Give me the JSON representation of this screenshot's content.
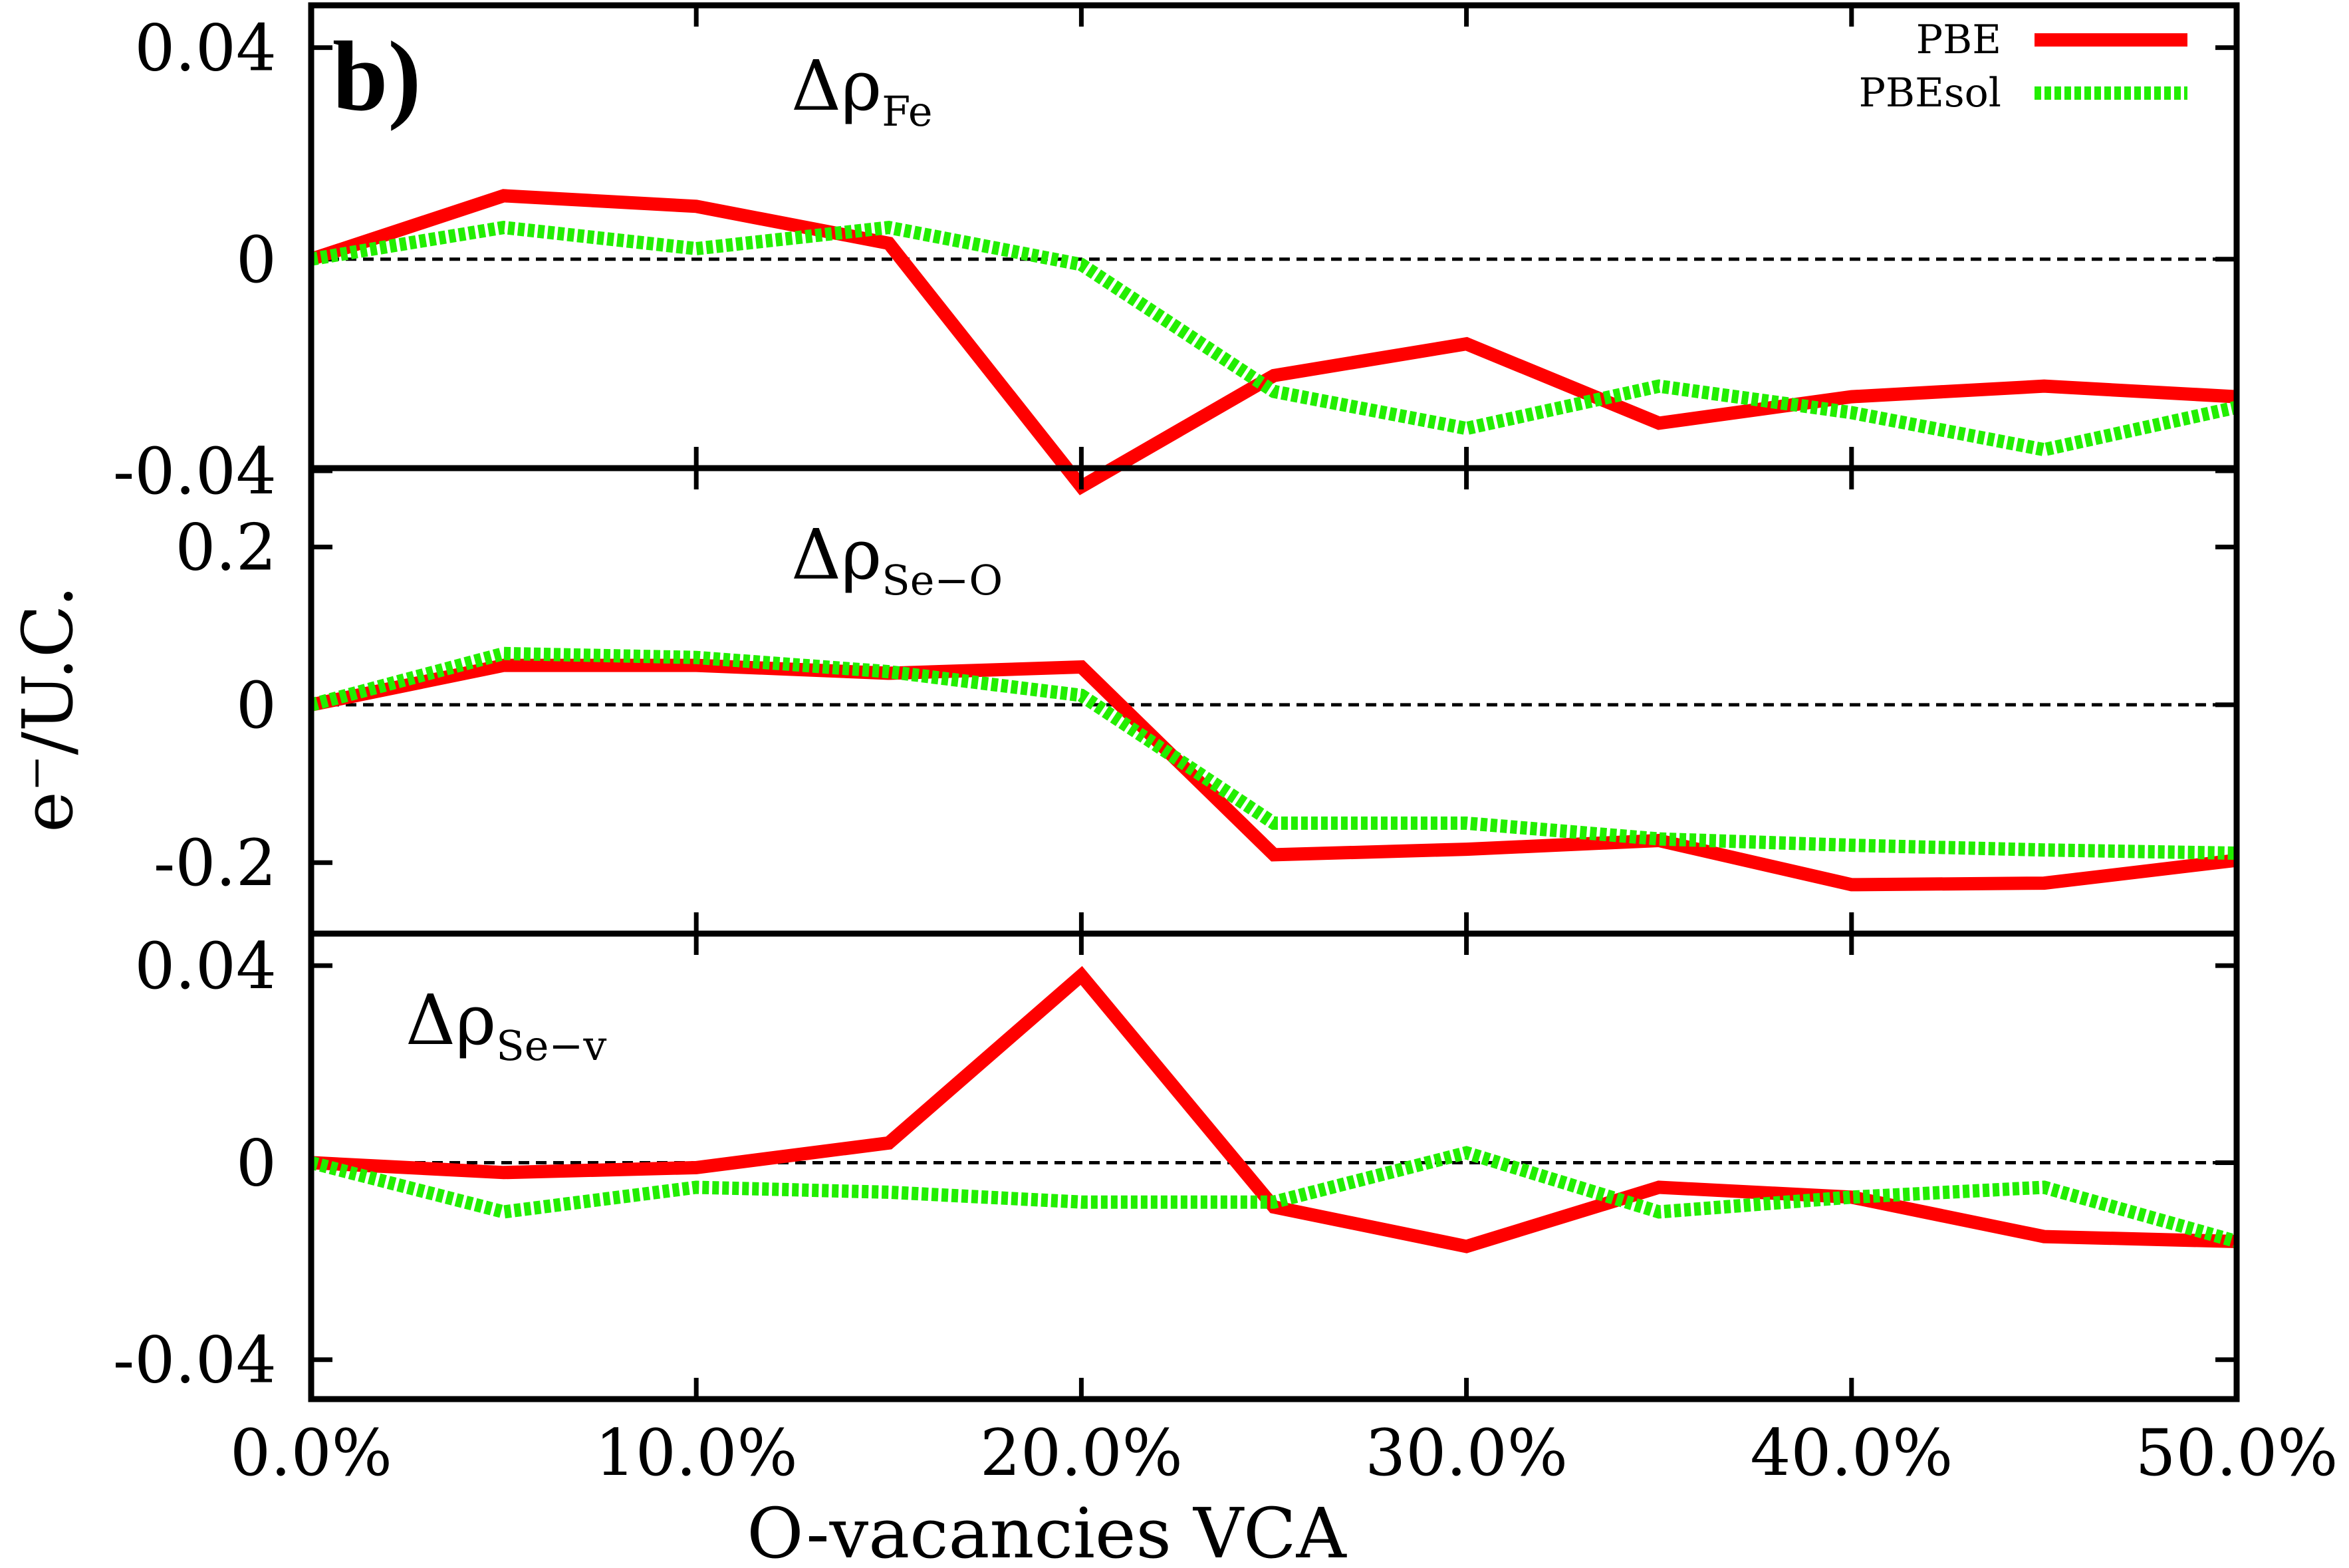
{
  "chart_data": {
    "type": "line",
    "panel_label": "b)",
    "xlabel": "O-vacancies VCA",
    "ylabel": "e⁻/U.C.",
    "x": [
      0,
      5,
      10,
      15,
      20,
      25,
      30,
      35,
      40,
      45,
      50
    ],
    "xlim": [
      0,
      50
    ],
    "xticks": [
      0,
      10,
      20,
      30,
      40,
      50
    ],
    "xtick_labels": [
      "0.0%",
      "10.0%",
      "20.0%",
      "30.0%",
      "40.0%",
      "50.0%"
    ],
    "legend": [
      {
        "name": "PBE",
        "color": "#ff0000",
        "style": "solid"
      },
      {
        "name": "PBEsol",
        "color": "#22ee00",
        "style": "dotted"
      }
    ],
    "reference_line": {
      "y": 0,
      "style": "dashed",
      "color": "#000000"
    },
    "panels": [
      {
        "annotation": {
          "symbol": "Δρ",
          "sub": "Fe"
        },
        "ylim": [
          -0.0395,
          0.048
        ],
        "yticks": [
          0.04,
          0,
          -0.04
        ],
        "ytick_labels": [
          "0.04",
          "0",
          "-0.04"
        ],
        "series": [
          {
            "name": "PBE",
            "values": [
              0,
              0.012,
              0.01,
              0.003,
              -0.043,
              -0.022,
              -0.016,
              -0.031,
              -0.026,
              -0.024,
              -0.026
            ]
          },
          {
            "name": "PBEsol",
            "values": [
              0,
              0.006,
              0.002,
              0.006,
              -0.001,
              -0.025,
              -0.032,
              -0.024,
              -0.029,
              -0.036,
              -0.028
            ]
          }
        ]
      },
      {
        "annotation": {
          "symbol": "Δρ",
          "sub": "Se−O"
        },
        "ylim": [
          -0.29,
          0.3
        ],
        "yticks": [
          0.2,
          0,
          -0.2
        ],
        "ytick_labels": [
          "0.2",
          "0",
          "-0.2"
        ],
        "series": [
          {
            "name": "PBE",
            "values": [
              0,
              0.05,
              0.05,
              0.04,
              0.048,
              -0.19,
              -0.183,
              -0.172,
              -0.228,
              -0.226,
              -0.197
            ]
          },
          {
            "name": "PBEsol",
            "values": [
              0,
              0.065,
              0.06,
              0.042,
              0.012,
              -0.15,
              -0.15,
              -0.17,
              -0.178,
              -0.184,
              -0.188
            ]
          }
        ]
      },
      {
        "annotation": {
          "symbol": "Δρ",
          "sub": "Se−v"
        },
        "ylim": [
          -0.048,
          0.0465
        ],
        "yticks": [
          0.04,
          0,
          -0.04
        ],
        "ytick_labels": [
          "0.04",
          "0",
          "-0.04"
        ],
        "series": [
          {
            "name": "PBE",
            "values": [
              0,
              -0.002,
              -0.001,
              0.004,
              0.038,
              -0.009,
              -0.017,
              -0.005,
              -0.007,
              -0.015,
              -0.016
            ]
          },
          {
            "name": "PBEsol",
            "values": [
              0,
              -0.01,
              -0.005,
              -0.006,
              -0.008,
              -0.008,
              0.002,
              -0.01,
              -0.007,
              -0.005,
              -0.016
            ]
          }
        ]
      }
    ]
  }
}
